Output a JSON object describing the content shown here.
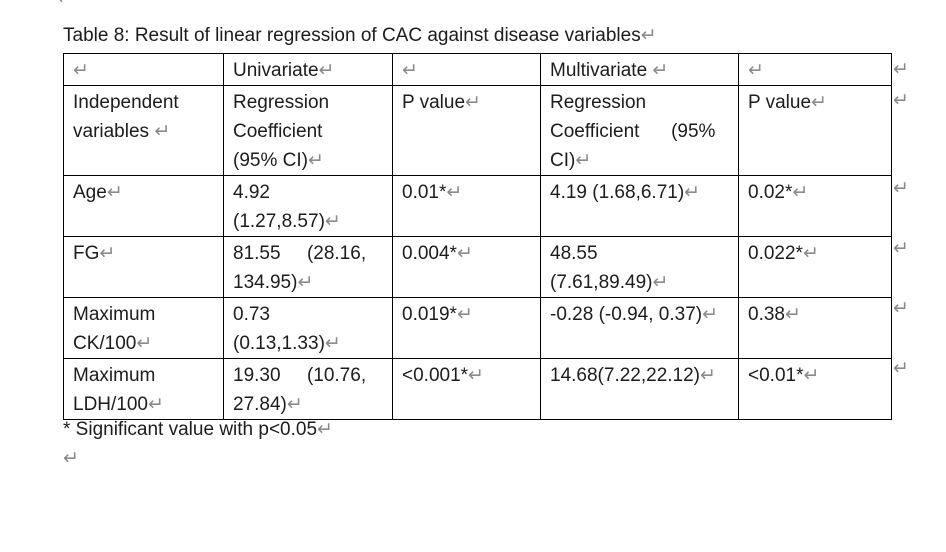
{
  "page": {
    "background_color": "#ffffff",
    "text_color": "#1c1c1c",
    "formatting_mark_color": "#8b8b8b",
    "table_border_color": "#000000"
  },
  "top_clipped_mark": "↵",
  "title": "Table 8: Result of linear regression of CAC against disease variables↵",
  "table": {
    "row_end_mark": "↵",
    "rows": [
      {
        "cells": [
          "↵",
          "Univariate↵",
          "↵",
          "Multivariate ↵",
          "↵"
        ]
      },
      {
        "cells": [
          "Independent\nvariables ↵",
          "Regression\nCoefficient\n(95% CI)↵",
          "P value↵",
          "Regression\nCoefficient      (95%\nCI)↵",
          "P value↵"
        ]
      },
      {
        "cells": [
          "Age↵",
          "4.92\n(1.27,8.57)↵",
          "0.01*↵",
          "4.19 (1.68,6.71)↵",
          "0.02*↵"
        ]
      },
      {
        "cells": [
          "FG↵",
          "81.55     (28.16,\n134.95)↵",
          "0.004*↵",
          "48.55\n(7.61,89.49)↵",
          "0.022*↵"
        ]
      },
      {
        "cells": [
          "Maximum\nCK/100↵",
          "0.73\n(0.13,1.33)↵",
          "0.019*↵",
          "-0.28 (-0.94, 0.37)↵",
          "0.38↵"
        ]
      },
      {
        "cells": [
          "Maximum\nLDH/100↵",
          "19.30     (10.76,\n27.84)↵",
          "<0.001*↵",
          "14.68(7.22,22.12)↵",
          "<0.01*↵"
        ]
      }
    ]
  },
  "footer": {
    "note": "* Significant value with p<0.05↵",
    "empty_paragraph_mark": "↵"
  }
}
